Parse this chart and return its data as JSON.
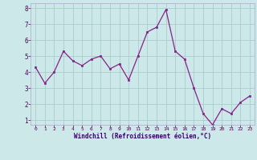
{
  "x": [
    0,
    1,
    2,
    3,
    4,
    5,
    6,
    7,
    8,
    9,
    10,
    11,
    12,
    13,
    14,
    15,
    16,
    17,
    18,
    19,
    20,
    21,
    22,
    23
  ],
  "y": [
    4.3,
    3.3,
    4.0,
    5.3,
    4.7,
    4.4,
    4.8,
    5.0,
    4.2,
    4.5,
    3.5,
    5.0,
    6.5,
    6.8,
    7.9,
    5.3,
    4.8,
    3.0,
    1.4,
    0.7,
    1.7,
    1.4,
    2.1,
    2.5
  ],
  "line_color": "#882288",
  "marker_color": "#882288",
  "bg_color": "#cce8e8",
  "grid_color": "#aacccc",
  "xlabel": "Windchill (Refroidissement éolien,°C)",
  "ylim": [
    0.7,
    8.3
  ],
  "xlim": [
    -0.5,
    23.5
  ],
  "yticks": [
    1,
    2,
    3,
    4,
    5,
    6,
    7,
    8
  ],
  "xticks": [
    0,
    1,
    2,
    3,
    4,
    5,
    6,
    7,
    8,
    9,
    10,
    11,
    12,
    13,
    14,
    15,
    16,
    17,
    18,
    19,
    20,
    21,
    22,
    23
  ]
}
